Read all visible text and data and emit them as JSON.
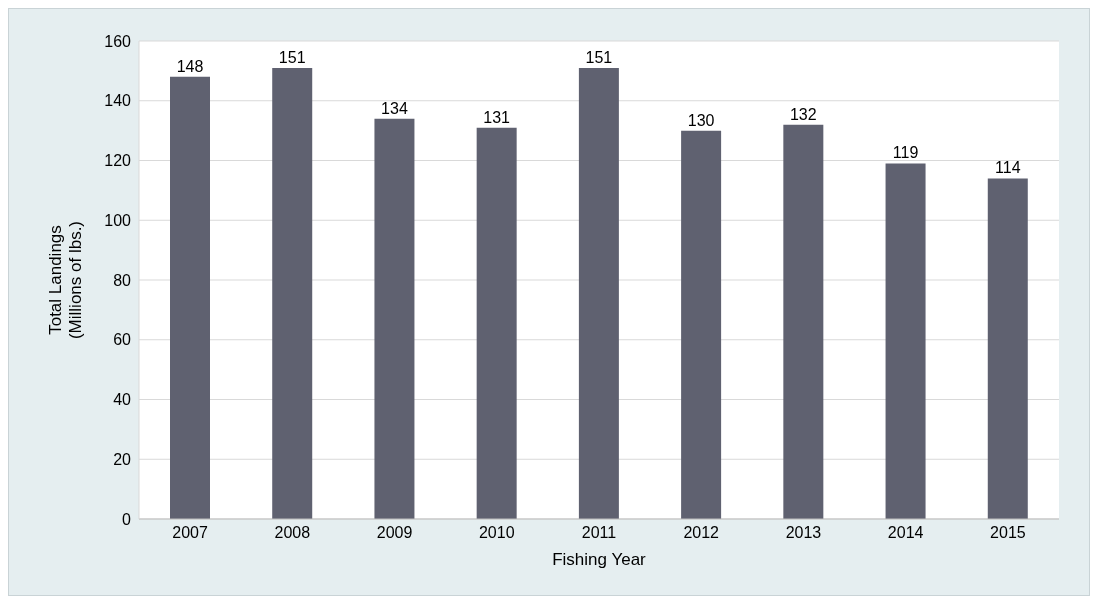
{
  "chart_data": {
    "type": "bar",
    "xlabel": "Fishing Year",
    "ylabel": "Total Landings\n(Millions of lbs.)",
    "categories": [
      "2007",
      "2008",
      "2009",
      "2010",
      "2011",
      "2012",
      "2013",
      "2014",
      "2015"
    ],
    "values": [
      148,
      151,
      134,
      131,
      151,
      130,
      132,
      119,
      114
    ],
    "color": "#5f6170",
    "ylim": [
      0,
      160
    ],
    "yticks": [
      0,
      20,
      40,
      60,
      80,
      100,
      120,
      140,
      160
    ],
    "grid": "y",
    "data_labels": true
  }
}
